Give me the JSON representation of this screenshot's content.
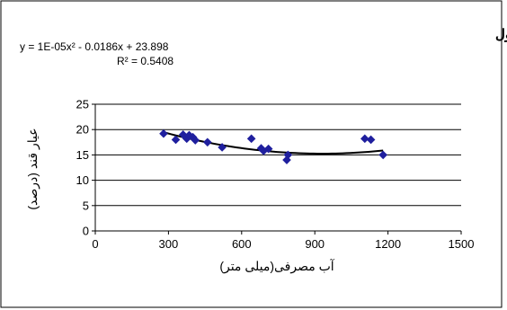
{
  "chart_data": {
    "type": "scatter",
    "title": "رقم رسول",
    "xlabel": "آب مصرفی(میلی متر)",
    "ylabel": "عیار قند (درصد)",
    "xlim": [
      0,
      1500
    ],
    "ylim": [
      0,
      25
    ],
    "xticks": [
      "0",
      "300",
      "600",
      "900",
      "1200",
      "1500"
    ],
    "yticks": [
      "0",
      "5",
      "10",
      "15",
      "20",
      "25"
    ],
    "grid": "horizontal",
    "legend": "none",
    "marker_color": "#1f1f9e",
    "trendline": {
      "type": "polynomial",
      "coefficients": [
        1e-05,
        -0.0186,
        23.898
      ],
      "x_range": [
        280,
        1180
      ],
      "equation": "y = 1E-05x² - 0.0186x + 23.898",
      "r_squared": "R² = 0.5408"
    },
    "points": [
      {
        "x": 280,
        "y": 19.2
      },
      {
        "x": 330,
        "y": 18.0
      },
      {
        "x": 360,
        "y": 19.0
      },
      {
        "x": 375,
        "y": 18.2
      },
      {
        "x": 385,
        "y": 18.9
      },
      {
        "x": 400,
        "y": 18.5
      },
      {
        "x": 410,
        "y": 17.9
      },
      {
        "x": 460,
        "y": 17.5
      },
      {
        "x": 520,
        "y": 16.5
      },
      {
        "x": 640,
        "y": 18.2
      },
      {
        "x": 680,
        "y": 16.3
      },
      {
        "x": 690,
        "y": 15.8
      },
      {
        "x": 710,
        "y": 16.2
      },
      {
        "x": 785,
        "y": 14.0
      },
      {
        "x": 790,
        "y": 15.0
      },
      {
        "x": 1105,
        "y": 18.2
      },
      {
        "x": 1130,
        "y": 18.0
      },
      {
        "x": 1180,
        "y": 15.0
      }
    ]
  }
}
